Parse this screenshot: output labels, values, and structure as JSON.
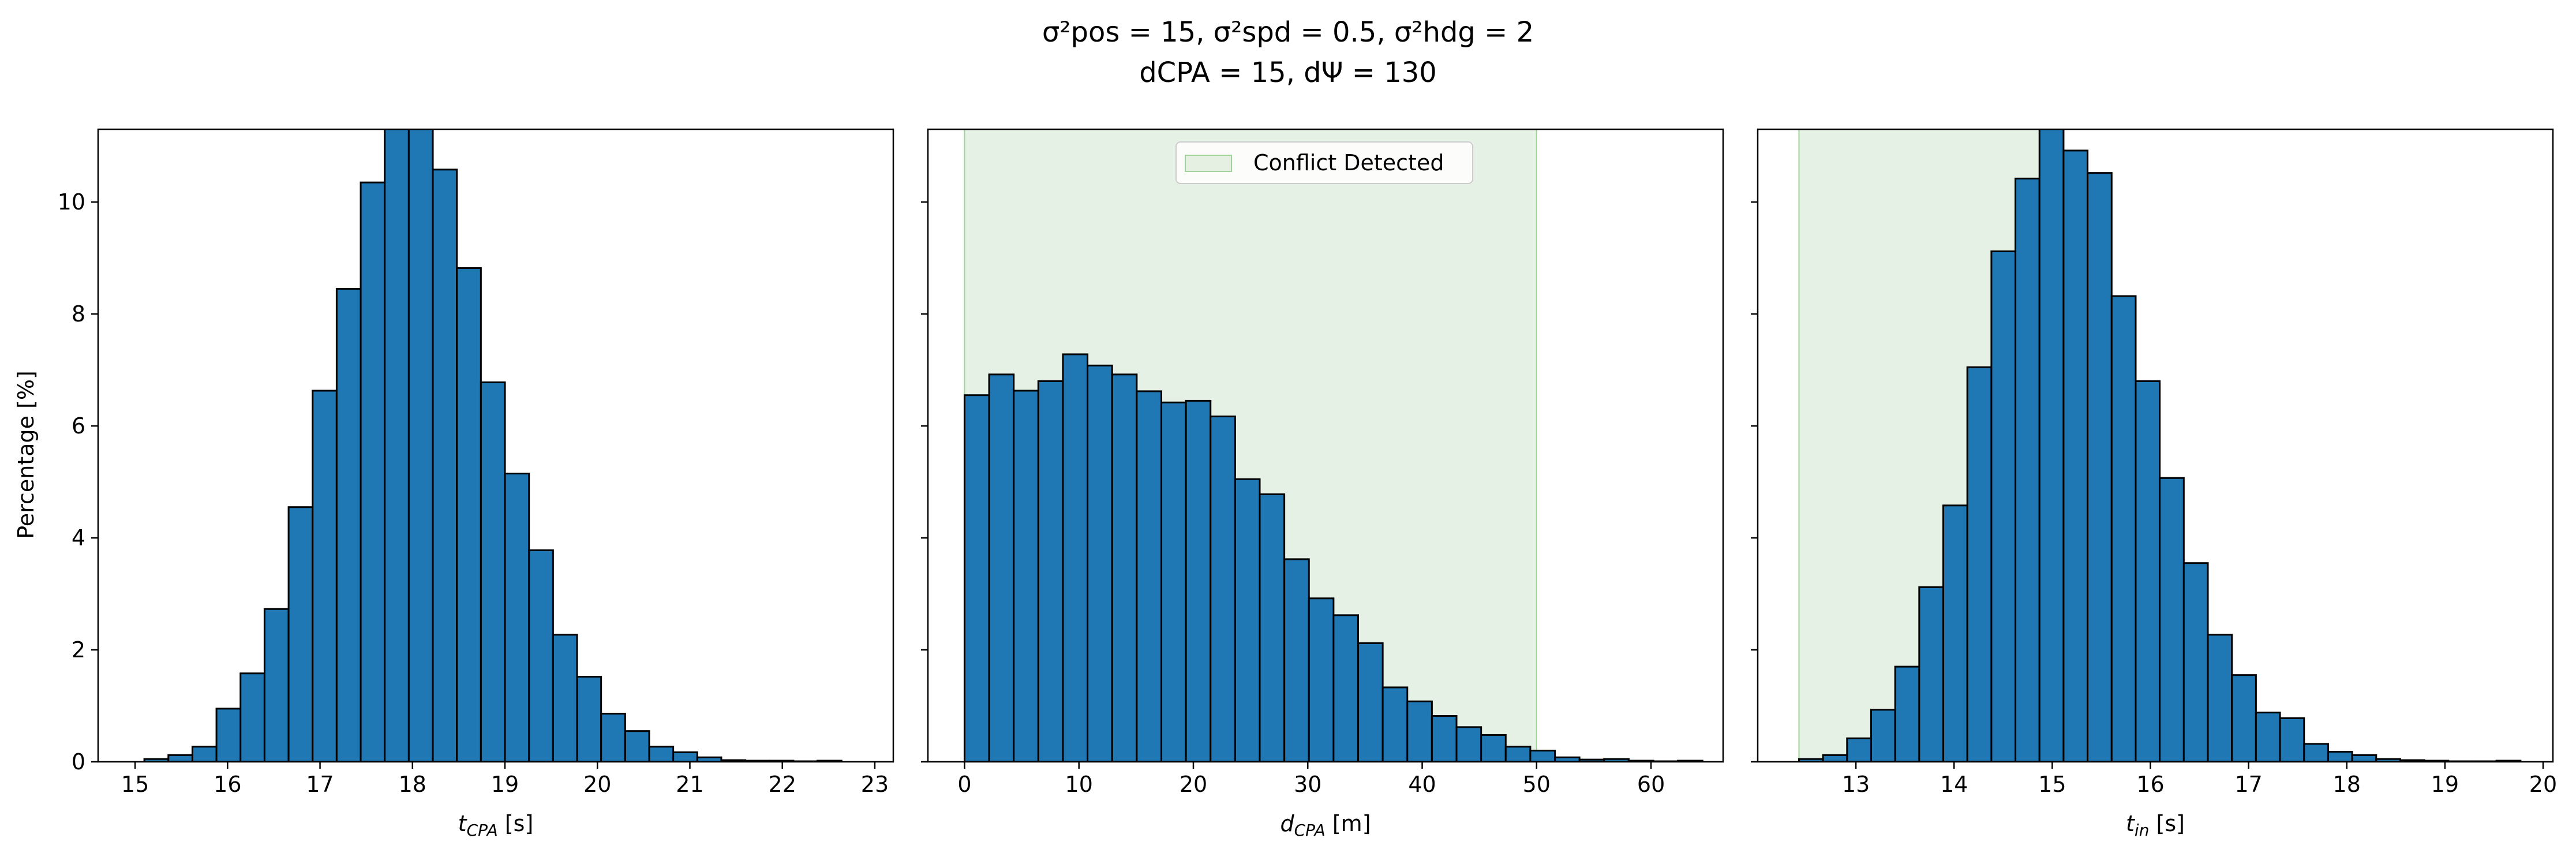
{
  "figure": {
    "title_line1": "σ²pos = 15, σ²spd = 0.5, σ²hdg = 2",
    "title_line2": "dCPA = 15, dΨ = 130",
    "ylabel": "Percentage [%]",
    "legend_label": "Conflict Detected"
  },
  "colors": {
    "bar": "#1f77b4",
    "bar_edge": "#000000",
    "conflict_region": "#d5e8d4"
  },
  "chart_data": [
    {
      "type": "bar",
      "panel": "t_CPA",
      "xlabel": "t_CPA [s]",
      "ylabel": "Percentage [%]",
      "ylim": [
        0,
        11.3
      ],
      "xlim": [
        14.6,
        23.2
      ],
      "yticks": [
        0,
        2,
        4,
        6,
        8,
        10
      ],
      "xticks": [
        15,
        16,
        17,
        18,
        19,
        20,
        21,
        22,
        23
      ],
      "bin_start": 15.1,
      "bin_width": 0.26,
      "values": [
        0.05,
        0.12,
        0.27,
        0.95,
        1.58,
        2.73,
        4.55,
        6.63,
        8.45,
        10.35,
        11.6,
        11.6,
        10.58,
        8.82,
        6.78,
        5.15,
        3.78,
        2.27,
        1.52,
        0.86,
        0.55,
        0.27,
        0.17,
        0.08,
        0.03,
        0.02,
        0.02,
        0.01,
        0.02
      ],
      "conflict_region": null
    },
    {
      "type": "bar",
      "panel": "d_CPA",
      "xlabel": "d_CPA [m]",
      "ylim": [
        0,
        11.3
      ],
      "xlim": [
        -3.2,
        66.3
      ],
      "yticks": [
        0,
        2,
        4,
        6,
        8,
        10
      ],
      "xticks": [
        0,
        10,
        20,
        30,
        40,
        50,
        60
      ],
      "bin_start": 0,
      "bin_width": 2.15,
      "values": [
        6.55,
        6.92,
        6.63,
        6.8,
        7.28,
        7.08,
        6.92,
        6.62,
        6.42,
        6.45,
        6.17,
        5.05,
        4.78,
        3.62,
        2.92,
        2.62,
        2.12,
        1.33,
        1.08,
        0.82,
        0.62,
        0.48,
        0.27,
        0.2,
        0.08,
        0.04,
        0.05,
        0.02,
        0.01,
        0.02
      ],
      "conflict_region": [
        0,
        50
      ],
      "legend": "Conflict Detected"
    },
    {
      "type": "bar",
      "panel": "t_in",
      "xlabel": "t_in [s]",
      "ylim": [
        0,
        11.3
      ],
      "xlim": [
        12.0,
        20.1
      ],
      "yticks": [
        0,
        2,
        4,
        6,
        8,
        10
      ],
      "xticks": [
        13,
        14,
        15,
        16,
        17,
        18,
        19,
        20
      ],
      "bin_start": 12.42,
      "bin_width": 0.245,
      "values": [
        0.05,
        0.12,
        0.42,
        0.93,
        1.7,
        3.12,
        4.58,
        7.05,
        9.12,
        10.42,
        11.45,
        10.92,
        10.52,
        8.32,
        6.8,
        5.07,
        3.55,
        2.27,
        1.55,
        0.88,
        0.78,
        0.32,
        0.18,
        0.12,
        0.05,
        0.03,
        0.02,
        0.01,
        0.01,
        0.02
      ],
      "conflict_region": [
        12.42,
        15.0
      ]
    }
  ]
}
